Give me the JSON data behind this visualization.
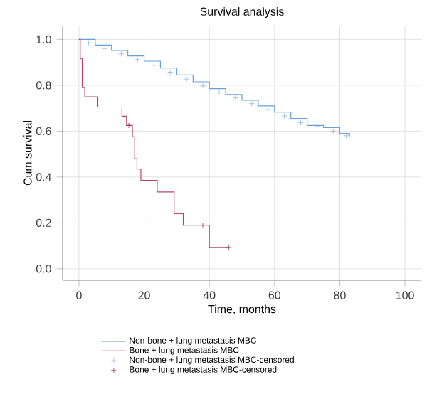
{
  "chart_data": {
    "type": "step",
    "title": "Survival analysis",
    "xlabel": "Time, months",
    "ylabel": "Cum survival",
    "xlim": [
      -5,
      105
    ],
    "ylim": [
      -0.05,
      1.06
    ],
    "xticks": [
      0,
      20,
      40,
      60,
      80,
      100
    ],
    "yticks": [
      {
        "value": 0,
        "label": "0.0"
      },
      {
        "value": 0.2,
        "label": "0.2"
      },
      {
        "value": 0.4,
        "label": "0.4"
      },
      {
        "value": 0.6,
        "label": "0.6"
      },
      {
        "value": 0.8,
        "label": "0.8"
      },
      {
        "value": 1,
        "label": "1.0"
      }
    ],
    "grid": true,
    "legend": "bottom",
    "series": [
      {
        "name": "Non-bone + lung metastasis MBC",
        "color": "#6a9fd8",
        "x": [
          0,
          5,
          10,
          15,
          20,
          25,
          30,
          35,
          40,
          45,
          50,
          55,
          60,
          65,
          70,
          75,
          80,
          83
        ],
        "values": [
          1.0,
          0.975,
          0.952,
          0.928,
          0.905,
          0.875,
          0.845,
          0.815,
          0.785,
          0.76,
          0.735,
          0.71,
          0.683,
          0.655,
          0.625,
          0.615,
          0.59,
          0.578
        ]
      },
      {
        "name": "Bone + lung metastasis MBC",
        "color": "#b5456e",
        "x": [
          0,
          0.4,
          1,
          1.8,
          5.8,
          13.2,
          14.6,
          16.4,
          17.1,
          17.8,
          19,
          24,
          29.2,
          32,
          40,
          46
        ],
        "values": [
          1.0,
          0.915,
          0.79,
          0.75,
          0.705,
          0.665,
          0.625,
          0.575,
          0.48,
          0.435,
          0.385,
          0.335,
          0.24,
          0.19,
          0.093,
          0.093
        ]
      },
      {
        "name": "Non-bone + lung metastasis MBC-censored",
        "type": "scatter",
        "marker": "cross",
        "color": "#8ab8e0",
        "x": [
          3,
          8,
          13,
          18,
          23,
          28,
          33,
          38,
          43,
          48,
          53,
          58,
          63,
          68,
          73,
          78,
          82
        ],
        "values": [
          0.985,
          0.96,
          0.937,
          0.912,
          0.887,
          0.857,
          0.827,
          0.797,
          0.77,
          0.745,
          0.72,
          0.694,
          0.666,
          0.637,
          0.62,
          0.6,
          0.58
        ]
      },
      {
        "name": "Bone + lung metastasis MBC-censored",
        "type": "scatter",
        "marker": "cross",
        "color": "#a0305a",
        "x": [
          15.3,
          38,
          46
        ],
        "values": [
          0.625,
          0.19,
          0.093
        ]
      }
    ]
  }
}
